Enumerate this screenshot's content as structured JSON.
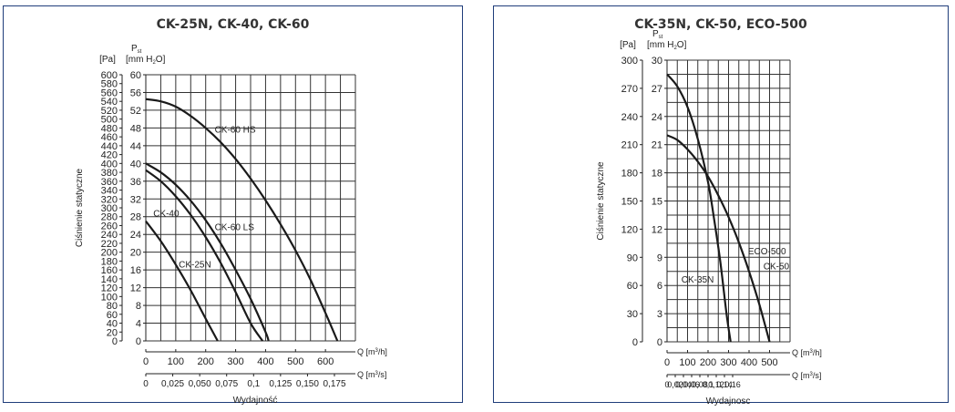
{
  "chart_data": [
    {
      "type": "line",
      "title": "CK-25N, CK-40, CK-60",
      "ylabel": "Ciśnienie statyczne",
      "xlabel": "Wydajność",
      "y_pa_unit": "[Pa]",
      "y_mm_symbol": "P",
      "y_mm_symbol_sub": "st",
      "y_mm_unit": "[mm H",
      "y_mm_unit_sub": "2",
      "y_mm_unit_end": "O]",
      "x_m3h_unit": "Q [m",
      "x_m3h_unit_sup": "3",
      "x_m3h_unit_end": "/h]",
      "x_m3s_unit": "Q [m",
      "x_m3s_unit_sup": "3",
      "x_m3s_unit_end": "/s]",
      "ylim_pa": [
        0,
        600
      ],
      "xlim_m3h": [
        0,
        700
      ],
      "y_ticks_pa": [
        "0",
        "20",
        "40",
        "60",
        "80",
        "100",
        "120",
        "140",
        "160",
        "180",
        "200",
        "220",
        "240",
        "260",
        "280",
        "300",
        "320",
        "340",
        "360",
        "380",
        "400",
        "420",
        "440",
        "460",
        "480",
        "500",
        "520",
        "540",
        "560",
        "580",
        "600"
      ],
      "y_ticks_mm": [
        "0",
        "4",
        "8",
        "12",
        "16",
        "20",
        "24",
        "28",
        "32",
        "36",
        "40",
        "44",
        "48",
        "52",
        "56",
        "60"
      ],
      "x_ticks_m3h": [
        "0",
        "100",
        "200",
        "300",
        "400",
        "500",
        "600"
      ],
      "x_ticks_m3s": [
        "0",
        "0,025",
        "0,050",
        "0,075",
        "0,1",
        "0,125",
        "0,150",
        "0,175"
      ],
      "grid": true,
      "series": [
        {
          "name": "CK-60 HS",
          "x": [
            0,
            50,
            100,
            150,
            200,
            250,
            300,
            350,
            400,
            450,
            500,
            550,
            600,
            640
          ],
          "y": [
            545,
            540,
            528,
            507,
            480,
            448,
            410,
            366,
            317,
            263,
            204,
            138,
            63,
            0
          ]
        },
        {
          "name": "CK-60 LS",
          "x": [
            0,
            50,
            100,
            150,
            200,
            250,
            300,
            350,
            400,
            410
          ],
          "y": [
            400,
            380,
            352,
            316,
            272,
            220,
            160,
            95,
            20,
            0
          ]
        },
        {
          "name": "CK-40",
          "x": [
            0,
            50,
            100,
            150,
            200,
            250,
            300,
            350,
            390
          ],
          "y": [
            385,
            360,
            326,
            284,
            234,
            176,
            110,
            40,
            0
          ]
        },
        {
          "name": "CK-25N",
          "x": [
            0,
            50,
            100,
            150,
            200,
            240
          ],
          "y": [
            270,
            225,
            172,
            114,
            50,
            0
          ]
        }
      ]
    },
    {
      "type": "line",
      "title": "CK-35N, CK-50, ECO-500",
      "ylabel": "Ciśnienie statyczne",
      "xlabel": "Wydajnosc",
      "y_pa_unit": "[Pa]",
      "y_mm_symbol": "P",
      "y_mm_symbol_sub": "st",
      "y_mm_unit": "[mm H",
      "y_mm_unit_sub": "2",
      "y_mm_unit_end": "O]",
      "x_m3h_unit": "Q [m",
      "x_m3h_unit_sup": "3",
      "x_m3h_unit_end": "/h]",
      "x_m3s_unit": "Q [m",
      "x_m3s_unit_sup": "3",
      "x_m3s_unit_end": "/s]",
      "ylim_pa": [
        0,
        300
      ],
      "xlim_m3h": [
        0,
        600
      ],
      "y_ticks_pa": [
        "0",
        "30",
        "60",
        "90",
        "120",
        "150",
        "180",
        "210",
        "240",
        "270",
        "300"
      ],
      "y_ticks_mm": [
        "0",
        "3",
        "6",
        "9",
        "12",
        "15",
        "18",
        "21",
        "24",
        "27",
        "30"
      ],
      "x_ticks_m3h": [
        "0",
        "100",
        "200",
        "300",
        "400",
        "500"
      ],
      "x_ticks_m3s": [
        "0",
        "0,02",
        "0,04",
        "0,06",
        "0,08",
        "0,1",
        "0,12",
        "0,14",
        "0,16"
      ],
      "grid": true,
      "series": [
        {
          "name": "CK-35N",
          "x": [
            0,
            50,
            100,
            150,
            200,
            230,
            260,
            290,
            310
          ],
          "y": [
            285,
            272,
            250,
            216,
            170,
            130,
            85,
            30,
            0
          ]
        },
        {
          "name": "ECO-500",
          "x": [
            0,
            50,
            100,
            150,
            200,
            250,
            300,
            350,
            400,
            450,
            500
          ],
          "y": [
            220,
            215,
            205,
            192,
            176,
            156,
            133,
            106,
            75,
            40,
            0
          ]
        }
      ],
      "labels": [
        {
          "text": "CK-35N",
          "at_x": 70,
          "at_y": 63
        },
        {
          "text": "ECO-500",
          "at_x": 395,
          "at_y": 93
        },
        {
          "text": "CK-50",
          "at_x": 470,
          "at_y": 77
        }
      ]
    }
  ]
}
